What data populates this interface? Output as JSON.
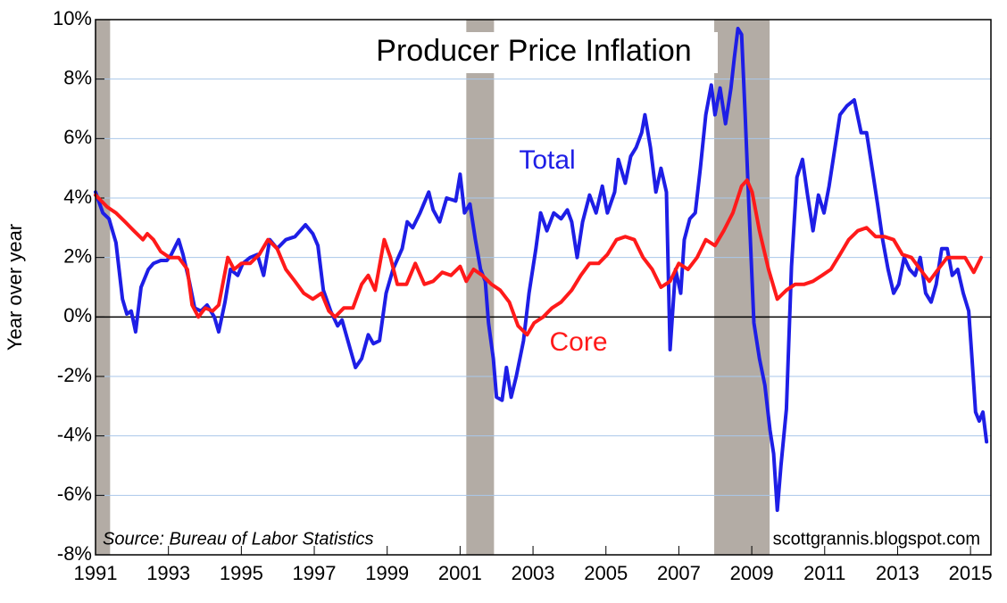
{
  "chart_data": {
    "type": "line",
    "title": "Producer Price Inflation",
    "y_label": "Year over year",
    "source": "Source: Bureau of Labor Statistics",
    "watermark": "scottgrannis.blogspot.com",
    "xlim": [
      1991,
      2015.56
    ],
    "ylim": [
      -8,
      10
    ],
    "xticks": [
      1991,
      1993,
      1995,
      1997,
      1999,
      2001,
      2003,
      2005,
      2007,
      2009,
      2011,
      2013,
      2015
    ],
    "yticks": [
      {
        "value": -8,
        "label": "-8%"
      },
      {
        "value": -6,
        "label": "-6%"
      },
      {
        "value": -4,
        "label": "-4%"
      },
      {
        "value": -2,
        "label": "-2%"
      },
      {
        "value": 0,
        "label": "0%"
      },
      {
        "value": 2,
        "label": "2%"
      },
      {
        "value": 4,
        "label": "4%"
      },
      {
        "value": 6,
        "label": "6%"
      },
      {
        "value": 8,
        "label": "8%"
      },
      {
        "value": 10,
        "label": "10%"
      }
    ],
    "grid": true,
    "recessions": [
      [
        1991.0,
        1991.4
      ],
      [
        2001.17,
        2001.93
      ],
      [
        2007.97,
        2009.49
      ]
    ],
    "recession_color": "#b3aca5",
    "series": [
      {
        "name": "Total",
        "color": "#1e1ee6",
        "x": [
          1991.0,
          1991.2,
          1991.37,
          1991.56,
          1991.74,
          1991.86,
          1991.98,
          1992.1,
          1992.25,
          1992.45,
          1992.59,
          1992.79,
          1992.96,
          1993.08,
          1993.28,
          1993.4,
          1993.57,
          1993.72,
          1993.89,
          1994.06,
          1994.26,
          1994.38,
          1994.55,
          1994.7,
          1994.9,
          1995.04,
          1995.24,
          1995.44,
          1995.61,
          1995.78,
          1995.98,
          1996.22,
          1996.47,
          1996.76,
          1996.96,
          1997.1,
          1997.25,
          1997.45,
          1997.64,
          1997.76,
          1997.99,
          1998.13,
          1998.3,
          1998.48,
          1998.62,
          1998.79,
          1998.97,
          1999.16,
          1999.41,
          1999.55,
          1999.7,
          1999.9,
          2000.14,
          2000.26,
          2000.44,
          2000.63,
          2000.88,
          2001.0,
          2001.12,
          2001.27,
          2001.42,
          2001.56,
          2001.69,
          2001.78,
          2001.91,
          2002.0,
          2002.15,
          2002.27,
          2002.4,
          2002.54,
          2002.74,
          2002.89,
          2003.08,
          2003.21,
          2003.38,
          2003.57,
          2003.77,
          2003.94,
          2004.06,
          2004.21,
          2004.36,
          2004.55,
          2004.73,
          2004.9,
          2005.04,
          2005.24,
          2005.34,
          2005.53,
          2005.68,
          2005.83,
          2005.98,
          2006.07,
          2006.22,
          2006.37,
          2006.51,
          2006.66,
          2006.76,
          2006.91,
          2007.05,
          2007.15,
          2007.3,
          2007.45,
          2007.59,
          2007.74,
          2007.89,
          2007.99,
          2008.13,
          2008.28,
          2008.43,
          2008.52,
          2008.62,
          2008.72,
          2008.82,
          2008.92,
          2009.06,
          2009.21,
          2009.36,
          2009.5,
          2009.6,
          2009.7,
          2009.8,
          2009.95,
          2010.09,
          2010.24,
          2010.39,
          2010.53,
          2010.68,
          2010.83,
          2010.98,
          2011.12,
          2011.27,
          2011.42,
          2011.61,
          2011.81,
          2012.0,
          2012.15,
          2012.3,
          2012.45,
          2012.59,
          2012.74,
          2012.89,
          2013.03,
          2013.18,
          2013.33,
          2013.48,
          2013.62,
          2013.77,
          2013.92,
          2014.06,
          2014.21,
          2014.36,
          2014.5,
          2014.65,
          2014.8,
          2014.95,
          2015.04,
          2015.14,
          2015.24,
          2015.34,
          2015.44
        ],
        "values": [
          4.2,
          3.5,
          3.3,
          2.5,
          0.6,
          0.1,
          0.2,
          -0.5,
          1.0,
          1.6,
          1.8,
          1.9,
          1.9,
          2.1,
          2.6,
          2.1,
          1.2,
          0.3,
          0.2,
          0.4,
          0.0,
          -0.5,
          0.5,
          1.6,
          1.4,
          1.8,
          2.0,
          2.1,
          1.4,
          2.6,
          2.3,
          2.6,
          2.7,
          3.1,
          2.8,
          2.4,
          0.9,
          0.2,
          -0.3,
          -0.1,
          -1.1,
          -1.7,
          -1.4,
          -0.6,
          -0.9,
          -0.8,
          0.8,
          1.6,
          2.3,
          3.2,
          3.0,
          3.5,
          4.2,
          3.6,
          3.2,
          4.0,
          3.9,
          4.8,
          3.5,
          3.8,
          2.6,
          1.6,
          1.2,
          -0.2,
          -1.4,
          -2.7,
          -2.8,
          -1.7,
          -2.7,
          -2.0,
          -0.8,
          0.8,
          2.3,
          3.5,
          2.9,
          3.5,
          3.3,
          3.6,
          3.2,
          2.0,
          3.2,
          4.1,
          3.5,
          4.4,
          3.5,
          4.2,
          5.3,
          4.5,
          5.4,
          5.7,
          6.2,
          6.8,
          5.7,
          4.2,
          5.0,
          4.2,
          -1.1,
          1.6,
          0.8,
          2.6,
          3.3,
          3.5,
          5.0,
          6.8,
          7.8,
          6.8,
          7.7,
          6.5,
          7.7,
          8.7,
          9.7,
          9.5,
          6.8,
          3.8,
          -0.2,
          -1.4,
          -2.3,
          -3.8,
          -4.6,
          -6.5,
          -5.0,
          -3.1,
          1.7,
          4.7,
          5.3,
          4.1,
          2.9,
          4.1,
          3.5,
          4.4,
          5.6,
          6.8,
          7.1,
          7.3,
          6.2,
          6.2,
          5.0,
          3.8,
          2.6,
          1.6,
          0.8,
          1.1,
          2.0,
          1.6,
          1.4,
          2.0,
          0.8,
          0.5,
          1.1,
          2.3,
          2.3,
          1.4,
          1.6,
          0.8,
          0.2,
          -1.4,
          -3.2,
          -3.5,
          -3.2,
          -4.2
        ]
      },
      {
        "name": "Core",
        "color": "#ff1a1a",
        "x": [
          1991.0,
          1991.32,
          1991.56,
          1991.81,
          1992.05,
          1992.3,
          1992.42,
          1992.59,
          1992.79,
          1993.03,
          1993.28,
          1993.52,
          1993.65,
          1993.82,
          1994.01,
          1994.21,
          1994.38,
          1994.63,
          1994.8,
          1995.0,
          1995.24,
          1995.49,
          1995.73,
          1995.98,
          1996.22,
          1996.47,
          1996.71,
          1996.96,
          1997.2,
          1997.4,
          1997.57,
          1997.81,
          1998.06,
          1998.3,
          1998.48,
          1998.67,
          1998.92,
          1999.09,
          1999.28,
          1999.53,
          1999.77,
          2000.02,
          2000.26,
          2000.51,
          2000.75,
          2001.0,
          2001.17,
          2001.37,
          2001.61,
          2001.86,
          2002.1,
          2002.35,
          2002.59,
          2002.84,
          2003.03,
          2003.28,
          2003.52,
          2003.77,
          2004.06,
          2004.31,
          2004.55,
          2004.8,
          2005.04,
          2005.29,
          2005.53,
          2005.78,
          2006.02,
          2006.27,
          2006.51,
          2006.76,
          2007.0,
          2007.25,
          2007.5,
          2007.74,
          2007.99,
          2008.23,
          2008.48,
          2008.72,
          2008.87,
          2009.01,
          2009.21,
          2009.46,
          2009.7,
          2009.95,
          2010.19,
          2010.44,
          2010.68,
          2010.93,
          2011.17,
          2011.42,
          2011.66,
          2011.91,
          2012.15,
          2012.4,
          2012.64,
          2012.89,
          2013.13,
          2013.38,
          2013.62,
          2013.87,
          2014.11,
          2014.36,
          2014.6,
          2014.85,
          2015.09,
          2015.29
        ],
        "values": [
          4.1,
          3.7,
          3.5,
          3.2,
          2.9,
          2.6,
          2.8,
          2.6,
          2.2,
          2.0,
          2.0,
          1.6,
          0.4,
          0.0,
          0.3,
          0.2,
          0.4,
          2.0,
          1.6,
          1.8,
          1.8,
          2.1,
          2.6,
          2.3,
          1.6,
          1.2,
          0.8,
          0.6,
          0.8,
          0.2,
          0.0,
          0.3,
          0.3,
          1.1,
          1.4,
          0.9,
          2.6,
          2.0,
          1.1,
          1.1,
          1.8,
          1.1,
          1.2,
          1.5,
          1.4,
          1.7,
          1.2,
          1.6,
          1.4,
          1.1,
          0.9,
          0.5,
          -0.3,
          -0.6,
          -0.2,
          0.0,
          0.3,
          0.5,
          0.9,
          1.4,
          1.8,
          1.8,
          2.1,
          2.6,
          2.7,
          2.6,
          2.0,
          1.6,
          1.0,
          1.2,
          1.8,
          1.6,
          2.0,
          2.6,
          2.4,
          2.9,
          3.5,
          4.4,
          4.6,
          4.2,
          2.9,
          1.6,
          0.6,
          0.9,
          1.1,
          1.1,
          1.2,
          1.4,
          1.6,
          2.1,
          2.6,
          2.9,
          3.0,
          2.7,
          2.7,
          2.6,
          2.1,
          2.0,
          1.6,
          1.2,
          1.6,
          2.0,
          2.0,
          2.0,
          1.5,
          2.0
        ]
      }
    ]
  }
}
